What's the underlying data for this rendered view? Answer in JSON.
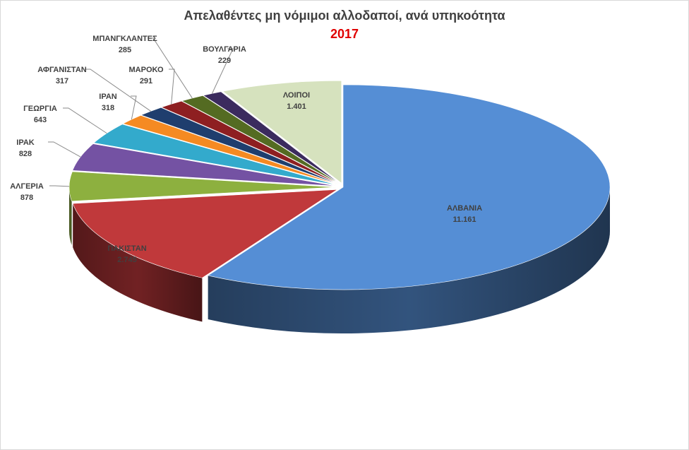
{
  "chart_data": {
    "type": "pie",
    "title": "Απελαθέντες μη νόμιμοι αλλοδαποί,  ανά υπηκοότητα",
    "subtitle": "2017",
    "categories": [
      "ΑΛΒΑΝΙΑ",
      "ΠΑΚΙΣΤΑΝ",
      "ΑΛΓΕΡΙΑ",
      "ΙΡΑΚ",
      "ΓΕΩΡΓΙΑ",
      "ΙΡΑΝ",
      "ΑΦΓΑΝΙΣΤΑΝ",
      "ΜΑΡΟΚΟ",
      "ΜΠΑΝΓΚΛΑΝΤΕΣ",
      "ΒΟΥΛΓΑΡΙΑ",
      "ΛΟΙΠΟΙ"
    ],
    "values": [
      11161,
      2745,
      878,
      828,
      643,
      318,
      317,
      291,
      285,
      229,
      1401
    ],
    "value_labels": [
      "11.161",
      "2.745",
      "878",
      "828",
      "643",
      "318",
      "317",
      "291",
      "285",
      "229",
      "1.401"
    ],
    "colors": [
      "#558ED5",
      "#C0393B",
      "#8DB03F",
      "#7452A3",
      "#33AACC",
      "#F58A22",
      "#1F3E6E",
      "#8E1F21",
      "#546B22",
      "#3B2B5E",
      "#D6E2BE"
    ],
    "style": "3d-exploded-ellipse"
  }
}
